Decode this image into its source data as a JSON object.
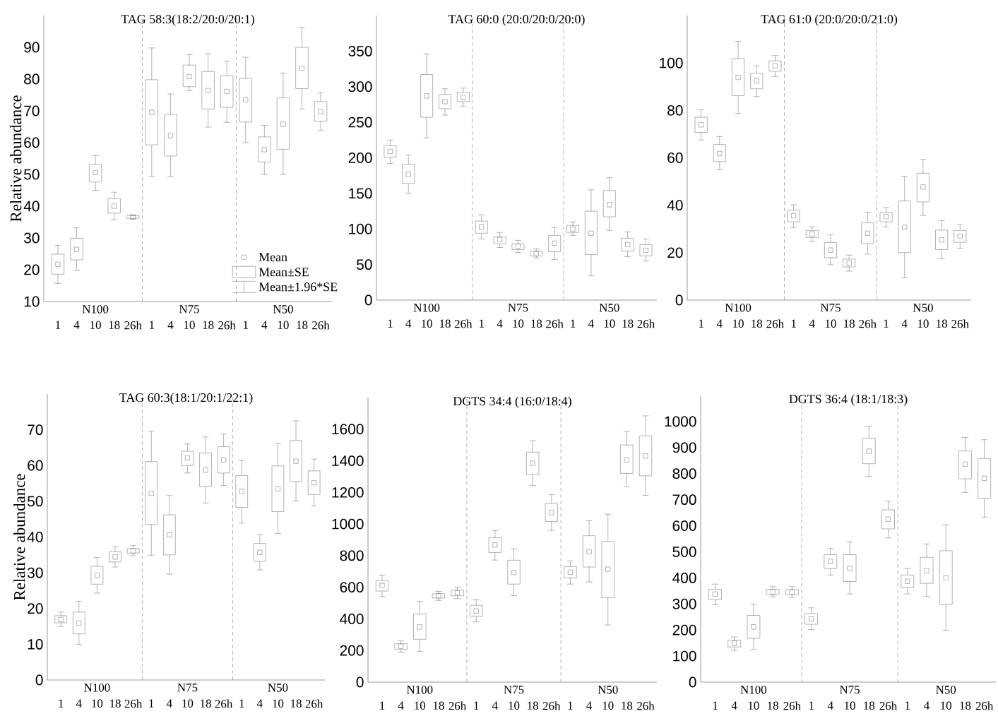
{
  "chart_data": [
    {
      "type": "box",
      "title": "TAG 58:3(18:2/20:0/20:1)",
      "ylabel": "Relative  abundance",
      "color": "#808080",
      "marker": "square",
      "categories": [
        "1",
        "4",
        "10",
        "18",
        "26h",
        "1",
        "4",
        "10",
        "18",
        "26h",
        "1",
        "4",
        "10",
        "18",
        "26h"
      ],
      "ylim": [
        10,
        100
      ],
      "yticks": [
        10,
        20,
        30,
        40,
        50,
        60,
        70,
        80,
        90
      ],
      "annotations": [
        "N100",
        "N75",
        "N50",
        "Mean",
        "Mean±SE",
        "Mean±1.96*SE"
      ],
      "boxes": [
        {
          "low": 15.7,
          "q1": 18.6,
          "mean": 21.7,
          "q3": 24.9,
          "high": 27.7
        },
        {
          "low": 19.8,
          "q1": 23.1,
          "mean": 26.4,
          "q3": 29.9,
          "high": 33.2
        },
        {
          "low": 45.0,
          "q1": 47.6,
          "mean": 50.6,
          "q3": 53.2,
          "high": 55.9
        },
        {
          "low": 35.7,
          "q1": 37.8,
          "mean": 40.0,
          "q3": 42.4,
          "high": 44.4
        },
        {
          "low": 36.0,
          "q1": 36.2,
          "mean": 36.6,
          "q3": 37.0,
          "high": 37.2
        },
        {
          "low": 49.4,
          "q1": 59.3,
          "mean": 69.5,
          "q3": 79.8,
          "high": 89.8
        },
        {
          "low": 49.4,
          "q1": 55.8,
          "mean": 62.2,
          "q3": 68.9,
          "high": 75.3
        },
        {
          "low": 76.3,
          "q1": 77.6,
          "mean": 80.8,
          "q3": 84.4,
          "high": 87.7
        },
        {
          "low": 64.9,
          "q1": 70.6,
          "mean": 76.4,
          "q3": 82.4,
          "high": 88.0
        },
        {
          "low": 66.4,
          "q1": 71.1,
          "mean": 76.1,
          "q3": 81.1,
          "high": 85.7
        },
        {
          "low": 60.0,
          "q1": 66.5,
          "mean": 73.5,
          "q3": 80.2,
          "high": 86.9
        },
        {
          "low": 50.0,
          "q1": 53.9,
          "mean": 57.8,
          "q3": 61.8,
          "high": 65.4
        },
        {
          "low": 50.0,
          "q1": 57.9,
          "mean": 65.8,
          "q3": 74.1,
          "high": 81.9
        },
        {
          "low": 70.6,
          "q1": 77.0,
          "mean": 83.4,
          "q3": 90.0,
          "high": 96.3
        },
        {
          "low": 63.8,
          "q1": 66.7,
          "mean": 69.8,
          "q3": 72.9,
          "high": 75.8
        }
      ]
    },
    {
      "type": "box",
      "title": "TAG 60:0 (20:0/20:0/20:0)",
      "color": "#808080",
      "marker": "square",
      "categories": [
        "1",
        "4",
        "10",
        "18",
        "26h",
        "1",
        "4",
        "10",
        "18",
        "26h",
        "1",
        "4",
        "10",
        "18",
        "26h"
      ],
      "ylim": [
        0,
        400
      ],
      "yticks": [
        0,
        50,
        100,
        150,
        200,
        250,
        300,
        350
      ],
      "annotations": [
        "N100",
        "N75",
        "N50"
      ],
      "boxes": [
        {
          "low": 192,
          "q1": 201,
          "mean": 209,
          "q3": 217,
          "high": 225
        },
        {
          "low": 150,
          "q1": 164,
          "mean": 177,
          "q3": 191,
          "high": 204
        },
        {
          "low": 228,
          "q1": 257,
          "mean": 287,
          "q3": 317,
          "high": 346
        },
        {
          "low": 260,
          "q1": 269,
          "mean": 279,
          "q3": 289,
          "high": 297
        },
        {
          "low": 272,
          "q1": 279,
          "mean": 285,
          "q3": 292,
          "high": 298
        },
        {
          "low": 86,
          "q1": 94,
          "mean": 103,
          "q3": 111,
          "high": 120
        },
        {
          "low": 74,
          "q1": 79,
          "mean": 85,
          "q3": 89,
          "high": 95
        },
        {
          "low": 67,
          "q1": 71,
          "mean": 76,
          "q3": 79,
          "high": 84
        },
        {
          "low": 59,
          "q1": 62,
          "mean": 65,
          "q3": 69,
          "high": 72
        },
        {
          "low": 57,
          "q1": 68,
          "mean": 80,
          "q3": 91,
          "high": 102
        },
        {
          "low": 91,
          "q1": 95,
          "mean": 100,
          "q3": 105,
          "high": 110
        },
        {
          "low": 34,
          "q1": 64,
          "mean": 94,
          "q3": 125,
          "high": 155
        },
        {
          "low": 98,
          "q1": 117,
          "mean": 134,
          "q3": 154,
          "high": 172
        },
        {
          "low": 61,
          "q1": 69,
          "mean": 78,
          "q3": 87,
          "high": 96
        },
        {
          "low": 55,
          "q1": 62,
          "mean": 70,
          "q3": 78,
          "high": 86
        }
      ]
    },
    {
      "type": "box",
      "title": "TAG 61:0 (20:0/20:0/21:0)",
      "color": "#808080",
      "marker": "square",
      "categories": [
        "1",
        "4",
        "10",
        "18",
        "26h",
        "1",
        "4",
        "10",
        "18",
        "26h",
        "1",
        "4",
        "10",
        "18",
        "26h"
      ],
      "ylim": [
        0,
        120
      ],
      "yticks": [
        0,
        20,
        40,
        60,
        80,
        100
      ],
      "annotations": [
        "N100",
        "N75",
        "N50"
      ],
      "boxes": [
        {
          "low": 67.5,
          "q1": 70.7,
          "mean": 73.9,
          "q3": 77.1,
          "high": 80.2
        },
        {
          "low": 55.0,
          "q1": 58.4,
          "mean": 61.8,
          "q3": 65.6,
          "high": 69.0
        },
        {
          "low": 78.7,
          "q1": 86.2,
          "mean": 93.9,
          "q3": 101.8,
          "high": 109.1
        },
        {
          "low": 85.8,
          "q1": 89.1,
          "mean": 92.5,
          "q3": 95.6,
          "high": 98.7
        },
        {
          "low": 94.3,
          "q1": 96.5,
          "mean": 98.8,
          "q3": 100.9,
          "high": 103.1
        },
        {
          "low": 30.6,
          "q1": 33.0,
          "mean": 35.6,
          "q3": 37.9,
          "high": 40.2
        },
        {
          "low": 24.8,
          "q1": 26.4,
          "mean": 27.9,
          "q3": 29.4,
          "high": 30.9
        },
        {
          "low": 14.9,
          "q1": 17.9,
          "mean": 21.1,
          "q3": 24.3,
          "high": 27.5
        },
        {
          "low": 12.2,
          "q1": 14.0,
          "mean": 15.7,
          "q3": 17.3,
          "high": 19.0
        },
        {
          "low": 19.4,
          "q1": 23.8,
          "mean": 28.2,
          "q3": 32.7,
          "high": 37.0
        },
        {
          "low": 30.9,
          "q1": 33.0,
          "mean": 35.2,
          "q3": 37.0,
          "high": 39.0
        },
        {
          "low": 9.4,
          "q1": 20.0,
          "mean": 30.7,
          "q3": 41.8,
          "high": 52.2
        },
        {
          "low": 35.7,
          "q1": 41.4,
          "mean": 47.7,
          "q3": 53.5,
          "high": 59.3
        },
        {
          "low": 17.4,
          "q1": 21.3,
          "mean": 25.4,
          "q3": 29.5,
          "high": 33.5
        },
        {
          "low": 21.9,
          "q1": 24.4,
          "mean": 26.9,
          "q3": 29.4,
          "high": 31.7
        }
      ]
    },
    {
      "type": "box",
      "title": "TAG 60:3(18:1/20:1/22:1)",
      "ylabel": "Relative  abundance",
      "color": "#808080",
      "marker": "square",
      "categories": [
        "1",
        "4",
        "10",
        "18",
        "26h",
        "1",
        "4",
        "10",
        "18",
        "26h",
        "1",
        "4",
        "10",
        "18",
        "26h"
      ],
      "ylim": [
        0,
        80
      ],
      "yticks": [
        0,
        10,
        20,
        30,
        40,
        50,
        60,
        70
      ],
      "annotations": [
        "N100",
        "N75",
        "N50"
      ],
      "boxes": [
        {
          "low": 15.0,
          "q1": 16.0,
          "mean": 16.9,
          "q3": 18.0,
          "high": 19.0
        },
        {
          "low": 10.0,
          "q1": 12.9,
          "mean": 15.9,
          "q3": 19.0,
          "high": 22.0
        },
        {
          "low": 24.3,
          "q1": 26.8,
          "mean": 29.3,
          "q3": 31.8,
          "high": 34.3
        },
        {
          "low": 31.6,
          "q1": 33.0,
          "mean": 34.4,
          "q3": 35.9,
          "high": 37.3
        },
        {
          "low": 34.8,
          "q1": 35.5,
          "mean": 36.1,
          "q3": 36.8,
          "high": 37.6
        },
        {
          "low": 34.9,
          "q1": 43.5,
          "mean": 52.2,
          "q3": 61.1,
          "high": 69.6
        },
        {
          "low": 29.6,
          "q1": 35.0,
          "mean": 40.6,
          "q3": 46.2,
          "high": 51.6
        },
        {
          "low": 57.9,
          "q1": 60.0,
          "mean": 62.1,
          "q3": 64.0,
          "high": 66.0
        },
        {
          "low": 49.5,
          "q1": 54.1,
          "mean": 58.7,
          "q3": 63.5,
          "high": 68.0
        },
        {
          "low": 54.4,
          "q1": 57.9,
          "mean": 61.6,
          "q3": 65.3,
          "high": 68.8
        },
        {
          "low": 43.9,
          "q1": 48.3,
          "mean": 52.8,
          "q3": 57.2,
          "high": 61.4
        },
        {
          "low": 30.8,
          "q1": 33.2,
          "mean": 35.7,
          "q3": 38.2,
          "high": 40.7
        },
        {
          "low": 41.0,
          "q1": 47.1,
          "mean": 53.5,
          "q3": 59.9,
          "high": 66.1
        },
        {
          "low": 50.1,
          "q1": 55.5,
          "mean": 61.2,
          "q3": 67.0,
          "high": 72.5
        },
        {
          "low": 48.7,
          "q1": 51.9,
          "mean": 55.2,
          "q3": 58.5,
          "high": 61.8
        }
      ]
    },
    {
      "type": "box",
      "title": "DGTS 34:4 (16:0/18:4)",
      "color": "#808080",
      "marker": "square",
      "categories": [
        "1",
        "4",
        "10",
        "18",
        "26h",
        "1",
        "4",
        "10",
        "18",
        "26h",
        "1",
        "4",
        "10",
        "18",
        "26h"
      ],
      "ylim": [
        0,
        1800
      ],
      "yticks": [
        0,
        200,
        400,
        600,
        800,
        1000,
        1200,
        1400,
        1600
      ],
      "annotations": [
        "N100",
        "N75",
        "N50"
      ],
      "boxes": [
        {
          "low": 541,
          "q1": 576,
          "mean": 611,
          "q3": 643,
          "high": 677
        },
        {
          "low": 188,
          "q1": 206,
          "mean": 227,
          "q3": 243,
          "high": 261
        },
        {
          "low": 194,
          "q1": 271,
          "mean": 349,
          "q3": 431,
          "high": 510
        },
        {
          "low": 517,
          "q1": 532,
          "mean": 546,
          "q3": 559,
          "high": 574
        },
        {
          "low": 528,
          "q1": 546,
          "mean": 565,
          "q3": 582,
          "high": 599
        },
        {
          "low": 382,
          "q1": 416,
          "mean": 450,
          "q3": 486,
          "high": 520
        },
        {
          "low": 772,
          "q1": 820,
          "mean": 868,
          "q3": 913,
          "high": 959
        },
        {
          "low": 547,
          "q1": 620,
          "mean": 693,
          "q3": 771,
          "high": 843
        },
        {
          "low": 1244,
          "q1": 1312,
          "mean": 1385,
          "q3": 1455,
          "high": 1527
        },
        {
          "low": 960,
          "q1": 1016,
          "mean": 1072,
          "q3": 1130,
          "high": 1187
        },
        {
          "low": 620,
          "q1": 659,
          "mean": 695,
          "q3": 731,
          "high": 766
        },
        {
          "low": 634,
          "q1": 728,
          "mean": 825,
          "q3": 926,
          "high": 1021
        },
        {
          "low": 361,
          "q1": 534,
          "mean": 714,
          "q3": 889,
          "high": 1062
        },
        {
          "low": 1235,
          "q1": 1320,
          "mean": 1406,
          "q3": 1500,
          "high": 1585
        },
        {
          "low": 1181,
          "q1": 1305,
          "mean": 1430,
          "q3": 1558,
          "high": 1684
        }
      ]
    },
    {
      "type": "box",
      "title": "DGTS 36:4 (18:1/18:3)",
      "color": "#808080",
      "marker": "square",
      "categories": [
        "1",
        "4",
        "10",
        "18",
        "26h",
        "1",
        "4",
        "10",
        "18",
        "26h",
        "1",
        "4",
        "10",
        "18",
        "26h"
      ],
      "ylim": [
        0,
        1100
      ],
      "yticks": [
        0,
        100,
        200,
        300,
        400,
        500,
        600,
        700,
        800,
        900,
        1000
      ],
      "annotations": [
        "N100",
        "N75",
        "N50"
      ],
      "boxes": [
        {
          "low": 297,
          "q1": 317,
          "mean": 338,
          "q3": 356,
          "high": 376
        },
        {
          "low": 122,
          "q1": 135,
          "mean": 149,
          "q3": 161,
          "high": 173
        },
        {
          "low": 125,
          "q1": 168,
          "mean": 212,
          "q3": 256,
          "high": 299
        },
        {
          "low": 327,
          "q1": 336,
          "mean": 346,
          "q3": 356,
          "high": 366
        },
        {
          "low": 325,
          "q1": 335,
          "mean": 345,
          "q3": 355,
          "high": 366
        },
        {
          "low": 202,
          "q1": 222,
          "mean": 242,
          "q3": 263,
          "high": 285
        },
        {
          "low": 411,
          "q1": 436,
          "mean": 463,
          "q3": 489,
          "high": 513
        },
        {
          "low": 338,
          "q1": 386,
          "mean": 436,
          "q3": 489,
          "high": 538
        },
        {
          "low": 789,
          "q1": 838,
          "mean": 886,
          "q3": 936,
          "high": 982
        },
        {
          "low": 553,
          "q1": 588,
          "mean": 625,
          "q3": 661,
          "high": 694
        },
        {
          "low": 338,
          "q1": 362,
          "mean": 387,
          "q3": 411,
          "high": 436
        },
        {
          "low": 329,
          "q1": 379,
          "mean": 427,
          "q3": 479,
          "high": 530
        },
        {
          "low": 199,
          "q1": 298,
          "mean": 400,
          "q3": 504,
          "high": 604
        },
        {
          "low": 728,
          "q1": 780,
          "mean": 836,
          "q3": 887,
          "high": 939
        },
        {
          "low": 633,
          "q1": 706,
          "mean": 782,
          "q3": 858,
          "high": 930
        }
      ]
    }
  ]
}
